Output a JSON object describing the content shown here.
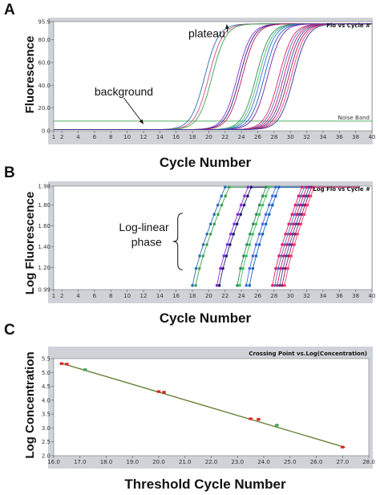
{
  "chart_data": [
    {
      "panel": "A",
      "type": "line",
      "box_title": "Flo vs Cycle #",
      "xlabel": "Cycle Number",
      "ylabel": "Fluorescence",
      "xlim": [
        1,
        40
      ],
      "ylim": [
        0,
        95.9
      ],
      "x_ticks": [
        1,
        2,
        4,
        6,
        8,
        10,
        12,
        14,
        16,
        18,
        20,
        22,
        24,
        26,
        28,
        30,
        32,
        34,
        36,
        38,
        40
      ],
      "y_ticks": [
        {
          "v": 0,
          "label": "0.0"
        },
        {
          "v": 20,
          "label": "20.0"
        },
        {
          "v": 40,
          "label": "40.0"
        },
        {
          "v": 60,
          "label": "60.0"
        },
        {
          "v": 80,
          "label": "80.0"
        },
        {
          "v": 95.9,
          "label": "95.9"
        }
      ],
      "noise_band": {
        "y": 8.5,
        "label": "Noise Band"
      },
      "annotations": [
        {
          "text": "plateau",
          "x": 17.5,
          "y": 82,
          "arrow_to": [
            22.2,
            93.5
          ]
        },
        {
          "text": "background",
          "x": 6,
          "y": 31,
          "arrow_to": [
            12,
            6
          ]
        }
      ],
      "plateau": 94,
      "baseline": 1,
      "series": [
        {
          "midpoint": 19.5,
          "color": "#2a6fb5"
        },
        {
          "midpoint": 20.0,
          "color": "#d24a7b"
        },
        {
          "midpoint": 20.4,
          "color": "#3aa34a"
        },
        {
          "midpoint": 23.5,
          "color": "#8a2be2"
        },
        {
          "midpoint": 23.8,
          "color": "#1f1f6e"
        },
        {
          "midpoint": 24.1,
          "color": "#c2185b"
        },
        {
          "midpoint": 25.8,
          "color": "#2e8b57"
        },
        {
          "midpoint": 26.1,
          "color": "#40c060"
        },
        {
          "midpoint": 26.4,
          "color": "#4169e1"
        },
        {
          "midpoint": 26.8,
          "color": "#1565c0"
        },
        {
          "midpoint": 27.2,
          "color": "#7b1fa2"
        },
        {
          "midpoint": 28.6,
          "color": "#e91e63"
        },
        {
          "midpoint": 28.9,
          "color": "#5c6bc0"
        },
        {
          "midpoint": 29.2,
          "color": "#d81b60"
        },
        {
          "midpoint": 29.5,
          "color": "#3949ab"
        },
        {
          "midpoint": 29.8,
          "color": "#ad1457"
        },
        {
          "midpoint": 30.1,
          "color": "#ec407a"
        },
        {
          "midpoint": 30.4,
          "color": "#283593"
        }
      ]
    },
    {
      "panel": "B",
      "type": "line",
      "box_title": "Log Flo vs Cycle #",
      "xlabel": "Cycle Number",
      "ylabel": "Log Fluorescence",
      "xlim": [
        1,
        40
      ],
      "ylim": [
        0.99,
        1.98
      ],
      "x_ticks": [
        1,
        2,
        4,
        6,
        8,
        10,
        12,
        14,
        16,
        18,
        20,
        22,
        24,
        26,
        28,
        30,
        32,
        34,
        36,
        38,
        40
      ],
      "y_ticks": [
        {
          "v": 0.99,
          "label": "0.99"
        },
        {
          "v": 1.2,
          "label": "1.20"
        },
        {
          "v": 1.4,
          "label": "1.40"
        },
        {
          "v": 1.6,
          "label": "1.60"
        },
        {
          "v": 1.8,
          "label": "1.80"
        },
        {
          "v": 1.98,
          "label": "1.98"
        }
      ],
      "annotations": [
        {
          "text": "Log-linear",
          "x": 9,
          "y": 1.55
        },
        {
          "text": "phase",
          "x": 10.5,
          "y": 1.41
        }
      ],
      "brace": {
        "x": 16.2,
        "y_top": 1.72,
        "y_bottom": 1.18
      },
      "series": [
        {
          "x_start": 18.0,
          "x_top": 22.0,
          "color": "#2a6fb5"
        },
        {
          "x_start": 18.4,
          "x_top": 22.5,
          "color": "#3aa34a"
        },
        {
          "x_start": 21.0,
          "x_top": 24.8,
          "color": "#8a2be2"
        },
        {
          "x_start": 21.3,
          "x_top": 25.2,
          "color": "#1f1f6e"
        },
        {
          "x_start": 23.5,
          "x_top": 27.0,
          "color": "#2e8b57"
        },
        {
          "x_start": 23.8,
          "x_top": 27.4,
          "color": "#40c060"
        },
        {
          "x_start": 24.6,
          "x_top": 28.2,
          "color": "#4169e1"
        },
        {
          "x_start": 25.0,
          "x_top": 28.6,
          "color": "#1565c0"
        },
        {
          "x_start": 27.8,
          "x_top": 31.4,
          "color": "#e91e63"
        },
        {
          "x_start": 28.1,
          "x_top": 31.7,
          "color": "#5c6bc0"
        },
        {
          "x_start": 28.4,
          "x_top": 32.0,
          "color": "#d81b60"
        },
        {
          "x_start": 28.7,
          "x_top": 32.3,
          "color": "#3949ab"
        },
        {
          "x_start": 29.0,
          "x_top": 32.6,
          "color": "#ad1457"
        },
        {
          "x_start": 29.3,
          "x_top": 32.9,
          "color": "#ec407a"
        }
      ],
      "top_value": 1.97
    },
    {
      "panel": "C",
      "type": "scatter",
      "box_title": "Crossing Point vs.Log(Concentration)",
      "xlabel": "Threshold Cycle Number",
      "ylabel": "Log Concentration",
      "xlim": [
        16.0,
        28.0
      ],
      "ylim": [
        2.0,
        5.5
      ],
      "x_ticks": [
        {
          "v": 16.0,
          "label": "16.0"
        },
        {
          "v": 17.0,
          "label": "17.0"
        },
        {
          "v": 18.0,
          "label": "18.0"
        },
        {
          "v": 19.0,
          "label": "19.0"
        },
        {
          "v": 20.0,
          "label": "20.0"
        },
        {
          "v": 21.0,
          "label": "21.0"
        },
        {
          "v": 22.0,
          "label": "22.0"
        },
        {
          "v": 23.0,
          "label": "23.0"
        },
        {
          "v": 24.0,
          "label": "24.0"
        },
        {
          "v": 25.0,
          "label": "25.0"
        },
        {
          "v": 26.0,
          "label": "26.0"
        },
        {
          "v": 27.0,
          "label": "27.0"
        },
        {
          "v": 28.0,
          "label": "28.0"
        }
      ],
      "y_ticks": [
        {
          "v": 2.0,
          "label": "2.0"
        },
        {
          "v": 2.5,
          "label": "2.5"
        },
        {
          "v": 3.0,
          "label": "3.0"
        },
        {
          "v": 3.5,
          "label": "3.5"
        },
        {
          "v": 4.0,
          "label": "4.0"
        },
        {
          "v": 4.5,
          "label": "4.5"
        },
        {
          "v": 5.0,
          "label": "5.0"
        },
        {
          "v": 5.5,
          "label": "5.5"
        }
      ],
      "fit_line": {
        "x": [
          16.3,
          27.1
        ],
        "y": [
          5.33,
          2.3
        ],
        "color": "#5a7a2a"
      },
      "points": [
        {
          "x": 16.3,
          "y": 5.32,
          "color": "#e02020"
        },
        {
          "x": 16.5,
          "y": 5.3,
          "color": "#e02020"
        },
        {
          "x": 17.2,
          "y": 5.1,
          "color": "#3aa34a"
        },
        {
          "x": 20.0,
          "y": 4.31,
          "color": "#e02020"
        },
        {
          "x": 20.2,
          "y": 4.29,
          "color": "#e02020"
        },
        {
          "x": 23.5,
          "y": 3.33,
          "color": "#e02020"
        },
        {
          "x": 23.8,
          "y": 3.31,
          "color": "#e02020"
        },
        {
          "x": 24.5,
          "y": 3.1,
          "color": "#3aa34a"
        },
        {
          "x": 27.0,
          "y": 2.31,
          "color": "#e02020"
        }
      ]
    }
  ]
}
